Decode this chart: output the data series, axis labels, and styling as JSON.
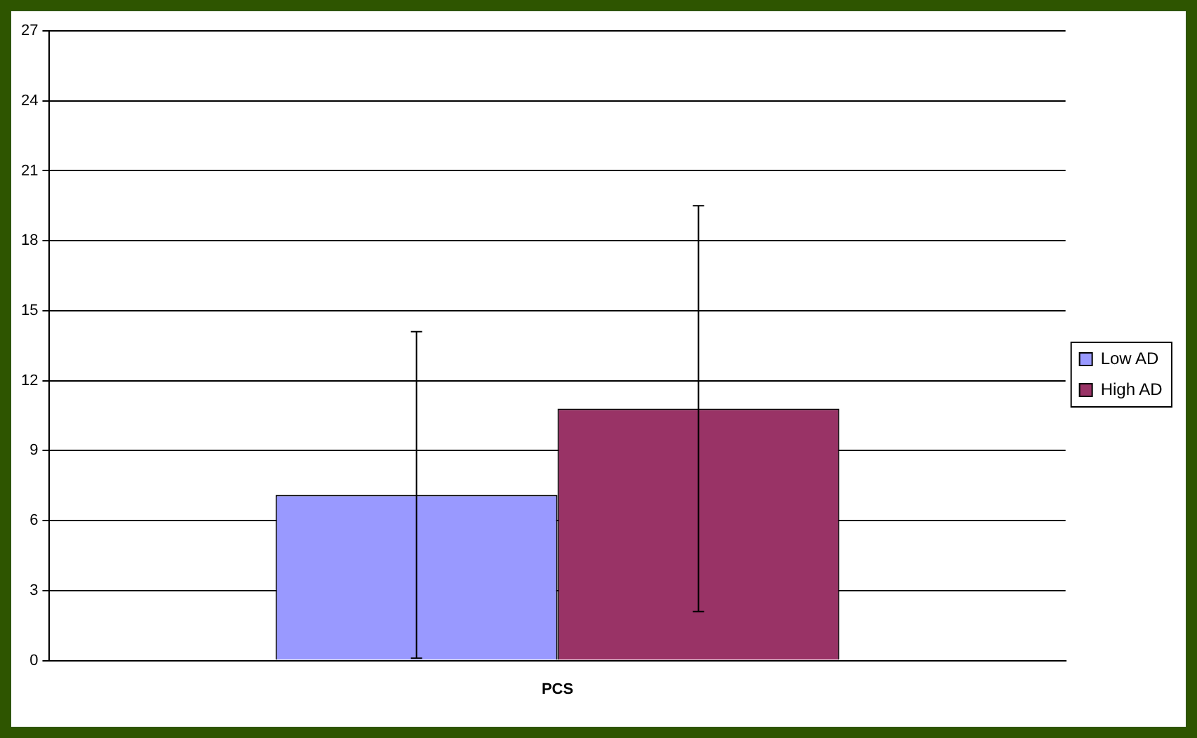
{
  "chart_data": {
    "type": "bar",
    "categories": [
      "PCS"
    ],
    "series": [
      {
        "name": "Low AD",
        "color": "#9999ff",
        "values": [
          7.1
        ],
        "errors": [
          7.0
        ]
      },
      {
        "name": "High AD",
        "color": "#993366",
        "values": [
          10.8
        ],
        "errors": [
          8.7
        ]
      }
    ],
    "ylim": [
      0,
      27
    ],
    "yticks": [
      0,
      3,
      6,
      9,
      12,
      15,
      18,
      21,
      24,
      27
    ],
    "grid": "y",
    "legend": "right"
  }
}
